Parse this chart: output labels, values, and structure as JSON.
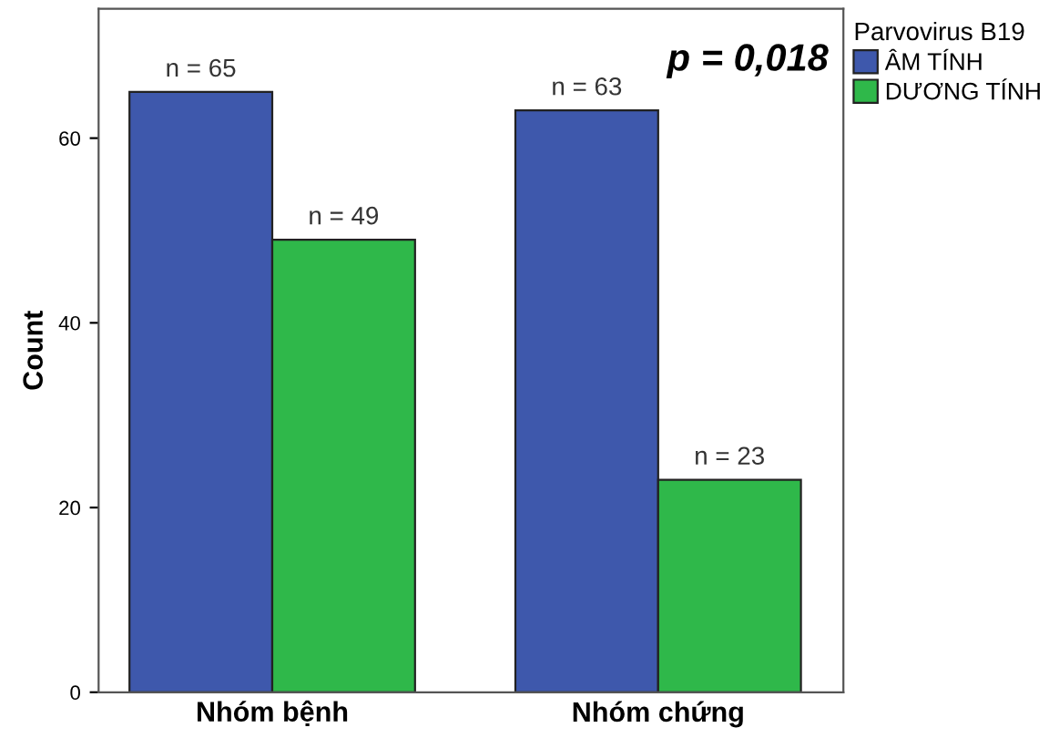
{
  "chart_data": {
    "type": "bar",
    "categories": [
      "Nhóm bệnh",
      "Nhóm chứng"
    ],
    "ylabel": "Count",
    "legend_title": "Parvovirus B19",
    "series": [
      {
        "name": "ÂM TÍNH",
        "color": "#3e58ac",
        "values": [
          65,
          63
        ],
        "value_labels": [
          "n = 65",
          "n = 63"
        ]
      },
      {
        "name": "DƯƠNG TÍNH",
        "color": "#2fb84a",
        "values": [
          49,
          23
        ],
        "value_labels": [
          "n = 49",
          "n = 23"
        ]
      }
    ],
    "annotations": [
      "p = 0,018"
    ],
    "ylim": [
      0,
      74
    ],
    "yticks": [
      0,
      20,
      40,
      60
    ],
    "grid": false,
    "legend": "top right"
  }
}
